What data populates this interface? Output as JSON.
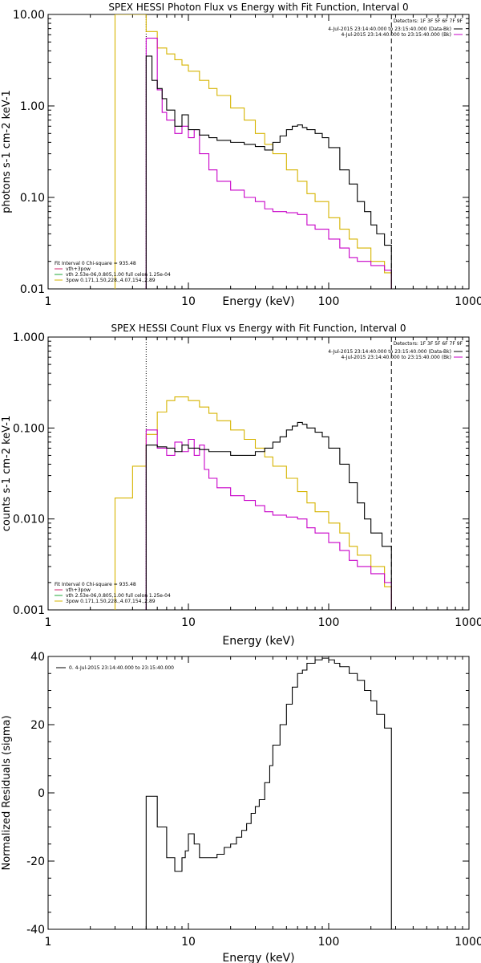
{
  "colors": {
    "data": "#000000",
    "total": "#d4276d",
    "thermal": "#22a83a",
    "powerlaw": "#d6b400",
    "background": "#c800c8"
  },
  "chart_data": [
    {
      "id": "photon",
      "type": "line",
      "title": "SPEX HESSI Photon Flux vs Energy with Fit Function, Interval 0",
      "xlabel": "Energy (keV)",
      "ylabel": "photons s-1 cm-2 keV-1",
      "xscale": "log",
      "yscale": "log",
      "xlim": [
        1,
        1000
      ],
      "ylim": [
        0.01,
        10
      ],
      "xticks": [
        1,
        10,
        100,
        1000
      ],
      "xtick_labels": [
        "1",
        "10",
        "100",
        "1000"
      ],
      "yticks": [
        0.01,
        0.1,
        1,
        10
      ],
      "ytick_labels": [
        "0.01",
        "0.10",
        "1.00",
        "10.00"
      ],
      "vlines": [
        {
          "x": 5,
          "style": "dotted"
        },
        {
          "x": 280,
          "style": "dashed"
        }
      ],
      "detectors": "Detectors: 1F 3F 5F 6F 7F 9F",
      "legend_top": [
        {
          "label": "4-Jul-2015 23:14:40.000 to 23:15:40.000 (Data-Bk)",
          "color": "#000000"
        },
        {
          "label": "4-Jul-2015 23:14:40.000 to 23:15:40.000 (Bk)",
          "color": "#c800c8"
        }
      ],
      "legend_bottom": {
        "header": "Fit Interval 0   Chi-square = 935.48",
        "entries": [
          {
            "label": "vth+3pow",
            "color": "#d4276d"
          },
          {
            "label": "vth 2.53e-06,0.805,1.00  full celon 1.25e-04",
            "color": "#22a83a"
          },
          {
            "label": "3pow 0.171,1.50,228.,4.07,154.,2.89",
            "color": "#d6b400"
          }
        ]
      },
      "series": [
        {
          "role": "data",
          "points": [
            [
              5,
              3.5
            ],
            [
              5.5,
              1.9
            ],
            [
              6,
              1.55
            ],
            [
              6.5,
              1.2
            ],
            [
              7,
              0.9
            ],
            [
              8,
              0.6
            ],
            [
              9,
              0.8
            ],
            [
              10,
              0.55
            ],
            [
              12,
              0.48
            ],
            [
              14,
              0.45
            ],
            [
              16,
              0.42
            ],
            [
              20,
              0.4
            ],
            [
              25,
              0.38
            ],
            [
              30,
              0.36
            ],
            [
              35,
              0.33
            ],
            [
              40,
              0.4
            ],
            [
              45,
              0.47
            ],
            [
              50,
              0.55
            ],
            [
              55,
              0.6
            ],
            [
              60,
              0.62
            ],
            [
              65,
              0.58
            ],
            [
              70,
              0.55
            ],
            [
              80,
              0.5
            ],
            [
              90,
              0.45
            ],
            [
              100,
              0.35
            ],
            [
              120,
              0.2
            ],
            [
              140,
              0.14
            ],
            [
              160,
              0.09
            ],
            [
              180,
              0.07
            ],
            [
              200,
              0.05
            ],
            [
              220,
              0.04
            ],
            [
              250,
              0.03
            ],
            [
              280,
              0.03
            ]
          ]
        },
        {
          "role": "powerlaw",
          "points": [
            [
              3,
              10
            ],
            [
              4,
              10
            ],
            [
              5,
              6.5
            ],
            [
              6,
              4.3
            ],
            [
              7,
              3.7
            ],
            [
              8,
              3.2
            ],
            [
              9,
              2.8
            ],
            [
              10,
              2.4
            ],
            [
              12,
              1.9
            ],
            [
              14,
              1.55
            ],
            [
              16,
              1.3
            ],
            [
              20,
              0.95
            ],
            [
              25,
              0.7
            ],
            [
              30,
              0.5
            ],
            [
              35,
              0.38
            ],
            [
              40,
              0.3
            ],
            [
              50,
              0.2
            ],
            [
              60,
              0.15
            ],
            [
              70,
              0.11
            ],
            [
              80,
              0.09
            ],
            [
              100,
              0.06
            ],
            [
              120,
              0.045
            ],
            [
              140,
              0.035
            ],
            [
              160,
              0.028
            ],
            [
              200,
              0.02
            ],
            [
              250,
              0.015
            ],
            [
              280,
              0.012
            ]
          ]
        },
        {
          "role": "background",
          "points": [
            [
              5,
              5.5
            ],
            [
              6,
              1.5
            ],
            [
              6.5,
              0.85
            ],
            [
              7,
              0.7
            ],
            [
              8,
              0.5
            ],
            [
              9,
              0.6
            ],
            [
              10,
              0.45
            ],
            [
              11,
              0.55
            ],
            [
              12,
              0.3
            ],
            [
              14,
              0.2
            ],
            [
              16,
              0.15
            ],
            [
              20,
              0.12
            ],
            [
              25,
              0.1
            ],
            [
              30,
              0.09
            ],
            [
              35,
              0.075
            ],
            [
              40,
              0.07
            ],
            [
              50,
              0.068
            ],
            [
              60,
              0.065
            ],
            [
              70,
              0.05
            ],
            [
              80,
              0.045
            ],
            [
              100,
              0.035
            ],
            [
              120,
              0.028
            ],
            [
              140,
              0.022
            ],
            [
              160,
              0.02
            ],
            [
              200,
              0.018
            ],
            [
              250,
              0.016
            ],
            [
              280,
              0.015
            ]
          ]
        }
      ]
    },
    {
      "id": "count",
      "type": "line",
      "title": "SPEX HESSI Count Flux vs Energy with Fit Function, Interval 0",
      "xlabel": "Energy (keV)",
      "ylabel": "counts s-1 cm-2 keV-1",
      "xscale": "log",
      "yscale": "log",
      "xlim": [
        1,
        1000
      ],
      "ylim": [
        0.001,
        1
      ],
      "xticks": [
        1,
        10,
        100,
        1000
      ],
      "xtick_labels": [
        "1",
        "10",
        "100",
        "1000"
      ],
      "yticks": [
        0.001,
        0.01,
        0.1,
        1
      ],
      "ytick_labels": [
        "0.001",
        "0.010",
        "0.100",
        "1.000"
      ],
      "vlines": [
        {
          "x": 5,
          "style": "dotted"
        },
        {
          "x": 280,
          "style": "dashed"
        }
      ],
      "detectors": "Detectors: 1F 3F 5F 6F 7F 9F",
      "legend_top": [
        {
          "label": "4-Jul-2015 23:14:40.000 to 23:15:40.000 (Data-Bk)",
          "color": "#000000"
        },
        {
          "label": "4-Jul-2015 23:14:40.000 to 23:15:40.000 (Bk)",
          "color": "#c800c8"
        }
      ],
      "legend_bottom": {
        "header": "Fit Interval 0   Chi-square = 935.48",
        "entries": [
          {
            "label": "vth+3pow",
            "color": "#d4276d"
          },
          {
            "label": "vth 2.53e-06,0.805,1.00  full celon 1.25e-04",
            "color": "#22a83a"
          },
          {
            "label": "3pow 0.171,1.50,228.,4.07,154.,2.89",
            "color": "#d6b400"
          }
        ]
      },
      "series": [
        {
          "role": "data",
          "points": [
            [
              5,
              0.065
            ],
            [
              6,
              0.062
            ],
            [
              7,
              0.06
            ],
            [
              8,
              0.055
            ],
            [
              9,
              0.065
            ],
            [
              10,
              0.06
            ],
            [
              12,
              0.058
            ],
            [
              14,
              0.055
            ],
            [
              16,
              0.055
            ],
            [
              20,
              0.05
            ],
            [
              25,
              0.05
            ],
            [
              30,
              0.055
            ],
            [
              35,
              0.06
            ],
            [
              40,
              0.07
            ],
            [
              45,
              0.08
            ],
            [
              50,
              0.095
            ],
            [
              55,
              0.105
            ],
            [
              60,
              0.115
            ],
            [
              65,
              0.11
            ],
            [
              70,
              0.1
            ],
            [
              80,
              0.09
            ],
            [
              90,
              0.08
            ],
            [
              100,
              0.06
            ],
            [
              120,
              0.04
            ],
            [
              140,
              0.025
            ],
            [
              160,
              0.015
            ],
            [
              180,
              0.01
            ],
            [
              200,
              0.007
            ],
            [
              240,
              0.005
            ],
            [
              280,
              0.0035
            ]
          ]
        },
        {
          "role": "powerlaw",
          "points": [
            [
              3,
              0.017
            ],
            [
              4,
              0.038
            ],
            [
              5,
              0.085
            ],
            [
              6,
              0.15
            ],
            [
              7,
              0.2
            ],
            [
              8,
              0.22
            ],
            [
              9,
              0.22
            ],
            [
              10,
              0.2
            ],
            [
              12,
              0.17
            ],
            [
              14,
              0.145
            ],
            [
              16,
              0.12
            ],
            [
              20,
              0.095
            ],
            [
              25,
              0.075
            ],
            [
              30,
              0.06
            ],
            [
              35,
              0.048
            ],
            [
              40,
              0.038
            ],
            [
              50,
              0.028
            ],
            [
              60,
              0.02
            ],
            [
              70,
              0.015
            ],
            [
              80,
              0.012
            ],
            [
              100,
              0.009
            ],
            [
              120,
              0.007
            ],
            [
              140,
              0.005
            ],
            [
              160,
              0.004
            ],
            [
              200,
              0.003
            ],
            [
              250,
              0.0018
            ],
            [
              280,
              0.0012
            ]
          ]
        },
        {
          "role": "background",
          "points": [
            [
              5,
              0.095
            ],
            [
              6,
              0.06
            ],
            [
              7,
              0.05
            ],
            [
              8,
              0.07
            ],
            [
              9,
              0.055
            ],
            [
              10,
              0.075
            ],
            [
              11,
              0.05
            ],
            [
              12,
              0.065
            ],
            [
              13,
              0.035
            ],
            [
              14,
              0.028
            ],
            [
              16,
              0.022
            ],
            [
              20,
              0.018
            ],
            [
              25,
              0.016
            ],
            [
              30,
              0.014
            ],
            [
              35,
              0.012
            ],
            [
              40,
              0.011
            ],
            [
              50,
              0.0105
            ],
            [
              60,
              0.01
            ],
            [
              70,
              0.008
            ],
            [
              80,
              0.007
            ],
            [
              100,
              0.0055
            ],
            [
              120,
              0.0045
            ],
            [
              140,
              0.0035
            ],
            [
              160,
              0.003
            ],
            [
              200,
              0.0025
            ],
            [
              250,
              0.002
            ],
            [
              280,
              0.0015
            ]
          ]
        }
      ]
    },
    {
      "id": "residuals",
      "type": "line",
      "title": "",
      "xlabel": "Energy (keV)",
      "ylabel": "Normalized Residuals (sigma)",
      "xscale": "log",
      "yscale": "linear",
      "xlim": [
        1,
        1000
      ],
      "ylim": [
        -40,
        40
      ],
      "xticks": [
        1,
        10,
        100,
        1000
      ],
      "xtick_labels": [
        "1",
        "10",
        "100",
        "1000"
      ],
      "yticks": [
        -40,
        -20,
        0,
        20,
        40
      ],
      "ytick_labels": [
        "-40",
        "-20",
        "0",
        "20",
        "40"
      ],
      "vlines": [],
      "legend_top": [
        {
          "label": "0.  4-Jul-2015 23:14:40.000 to 23:15:40.000",
          "color": "#000000"
        }
      ],
      "series": [
        {
          "role": "data",
          "points": [
            [
              5,
              -40
            ],
            [
              5,
              -1
            ],
            [
              5.5,
              -1
            ],
            [
              6,
              -10
            ],
            [
              7,
              -19
            ],
            [
              8,
              -23
            ],
            [
              9,
              -19
            ],
            [
              9.5,
              -17
            ],
            [
              10,
              -12
            ],
            [
              11,
              -15
            ],
            [
              12,
              -19
            ],
            [
              14,
              -19
            ],
            [
              16,
              -18
            ],
            [
              18,
              -16
            ],
            [
              20,
              -15
            ],
            [
              22,
              -13
            ],
            [
              24,
              -11
            ],
            [
              26,
              -9
            ],
            [
              28,
              -6
            ],
            [
              30,
              -4
            ],
            [
              32,
              -2
            ],
            [
              35,
              3
            ],
            [
              38,
              8
            ],
            [
              40,
              14
            ],
            [
              45,
              20
            ],
            [
              50,
              26
            ],
            [
              55,
              31
            ],
            [
              60,
              35
            ],
            [
              65,
              36
            ],
            [
              70,
              38
            ],
            [
              80,
              39
            ],
            [
              90,
              39.5
            ],
            [
              100,
              39
            ],
            [
              110,
              38
            ],
            [
              120,
              37
            ],
            [
              140,
              35
            ],
            [
              160,
              33
            ],
            [
              180,
              30
            ],
            [
              200,
              27
            ],
            [
              220,
              23
            ],
            [
              250,
              19
            ],
            [
              280,
              15
            ],
            [
              280,
              -40
            ]
          ]
        }
      ]
    }
  ]
}
